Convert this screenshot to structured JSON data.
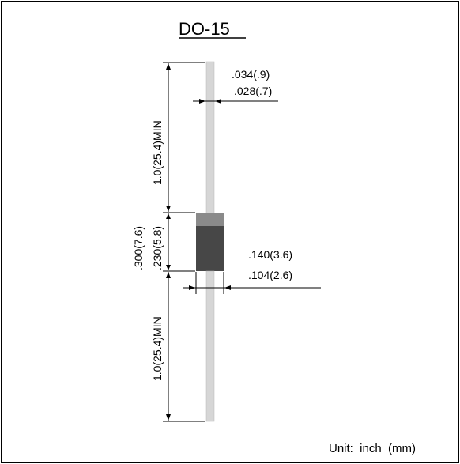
{
  "title": "DO-15",
  "dimensions": {
    "lead_diameter_max": ".034(.9)",
    "lead_diameter_min": ".028(.7)",
    "lead_length_top": "1.0(25.4)MIN",
    "body_length_max": ".300(7.6)",
    "body_length_min": ".230(5.8)",
    "body_diameter_max": ".140(3.6)",
    "body_diameter_min": ".104(2.6)",
    "lead_length_bottom": "1.0(25.4)MIN"
  },
  "unit_label": "Unit:  inch  (mm)",
  "colors": {
    "lead": "#d6d6d6",
    "body": "#474747",
    "band": "#8a8a8a",
    "line": "#000000"
  }
}
